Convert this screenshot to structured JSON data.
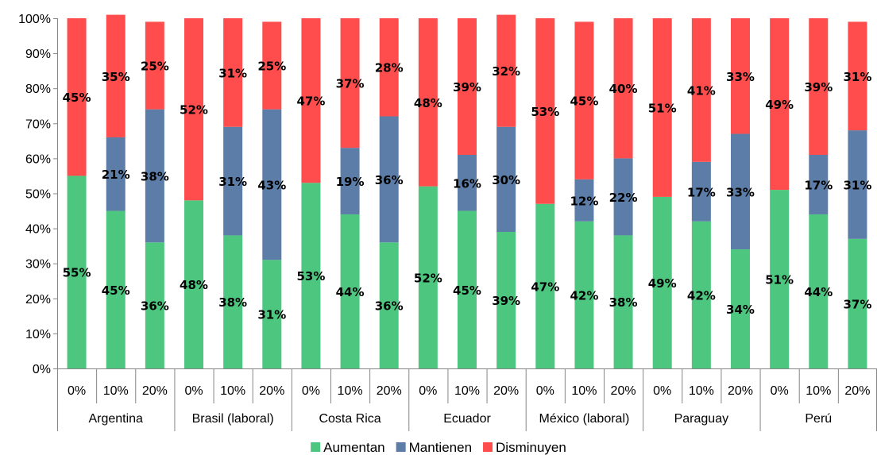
{
  "chart_data": {
    "type": "bar",
    "stacked": true,
    "percent_stacked": true,
    "ylim": [
      0,
      100
    ],
    "y_ticks": [
      "0%",
      "10%",
      "20%",
      "30%",
      "40%",
      "50%",
      "60%",
      "70%",
      "80%",
      "90%",
      "100%"
    ],
    "grid": false,
    "legend_position": "bottom",
    "groups": [
      {
        "name": "Argentina",
        "categories": [
          "0%",
          "10%",
          "20%"
        ]
      },
      {
        "name": "Brasil (laboral)",
        "categories": [
          "0%",
          "10%",
          "20%"
        ]
      },
      {
        "name": "Costa Rica",
        "categories": [
          "0%",
          "10%",
          "20%"
        ]
      },
      {
        "name": "Ecuador",
        "categories": [
          "0%",
          "10%",
          "20%"
        ]
      },
      {
        "name": "México (laboral)",
        "categories": [
          "0%",
          "10%",
          "20%"
        ]
      },
      {
        "name": "Paraguay",
        "categories": [
          "0%",
          "10%",
          "20%"
        ]
      },
      {
        "name": "Perú",
        "categories": [
          "0%",
          "10%",
          "20%"
        ]
      }
    ],
    "series": [
      {
        "name": "Aumentan",
        "color": "#4dc77f",
        "values": [
          55,
          45,
          36,
          48,
          38,
          31,
          53,
          44,
          36,
          52,
          45,
          39,
          47,
          42,
          38,
          49,
          42,
          34,
          51,
          44,
          37
        ],
        "labels": [
          "55%",
          "45%",
          "36%",
          "48%",
          "38%",
          "31%",
          "53%",
          "44%",
          "36%",
          "52%",
          "45%",
          "39%",
          "47%",
          "42%",
          "38%",
          "49%",
          "42%",
          "34%",
          "51%",
          "44%",
          "37%"
        ]
      },
      {
        "name": "Mantienen",
        "color": "#5b7da7",
        "values": [
          0,
          21,
          38,
          0,
          31,
          43,
          0,
          19,
          36,
          0,
          16,
          30,
          0,
          12,
          22,
          0,
          17,
          33,
          0,
          17,
          31
        ],
        "labels": [
          "",
          "21%",
          "38%",
          "",
          "31%",
          "43%",
          "",
          "19%",
          "36%",
          "",
          "16%",
          "30%",
          "",
          "12%",
          "22%",
          "",
          "17%",
          "33%",
          "",
          "17%",
          "31%"
        ]
      },
      {
        "name": "Disminuyen",
        "color": "#ff4d4d",
        "values": [
          45,
          35,
          25,
          52,
          31,
          25,
          47,
          37,
          28,
          48,
          39,
          32,
          53,
          45,
          40,
          51,
          41,
          33,
          49,
          39,
          31
        ],
        "labels": [
          "45%",
          "35%",
          "25%",
          "52%",
          "31%",
          "25%",
          "47%",
          "37%",
          "28%",
          "48%",
          "39%",
          "32%",
          "53%",
          "45%",
          "40%",
          "51%",
          "41%",
          "33%",
          "49%",
          "39%",
          "31%"
        ]
      }
    ]
  }
}
